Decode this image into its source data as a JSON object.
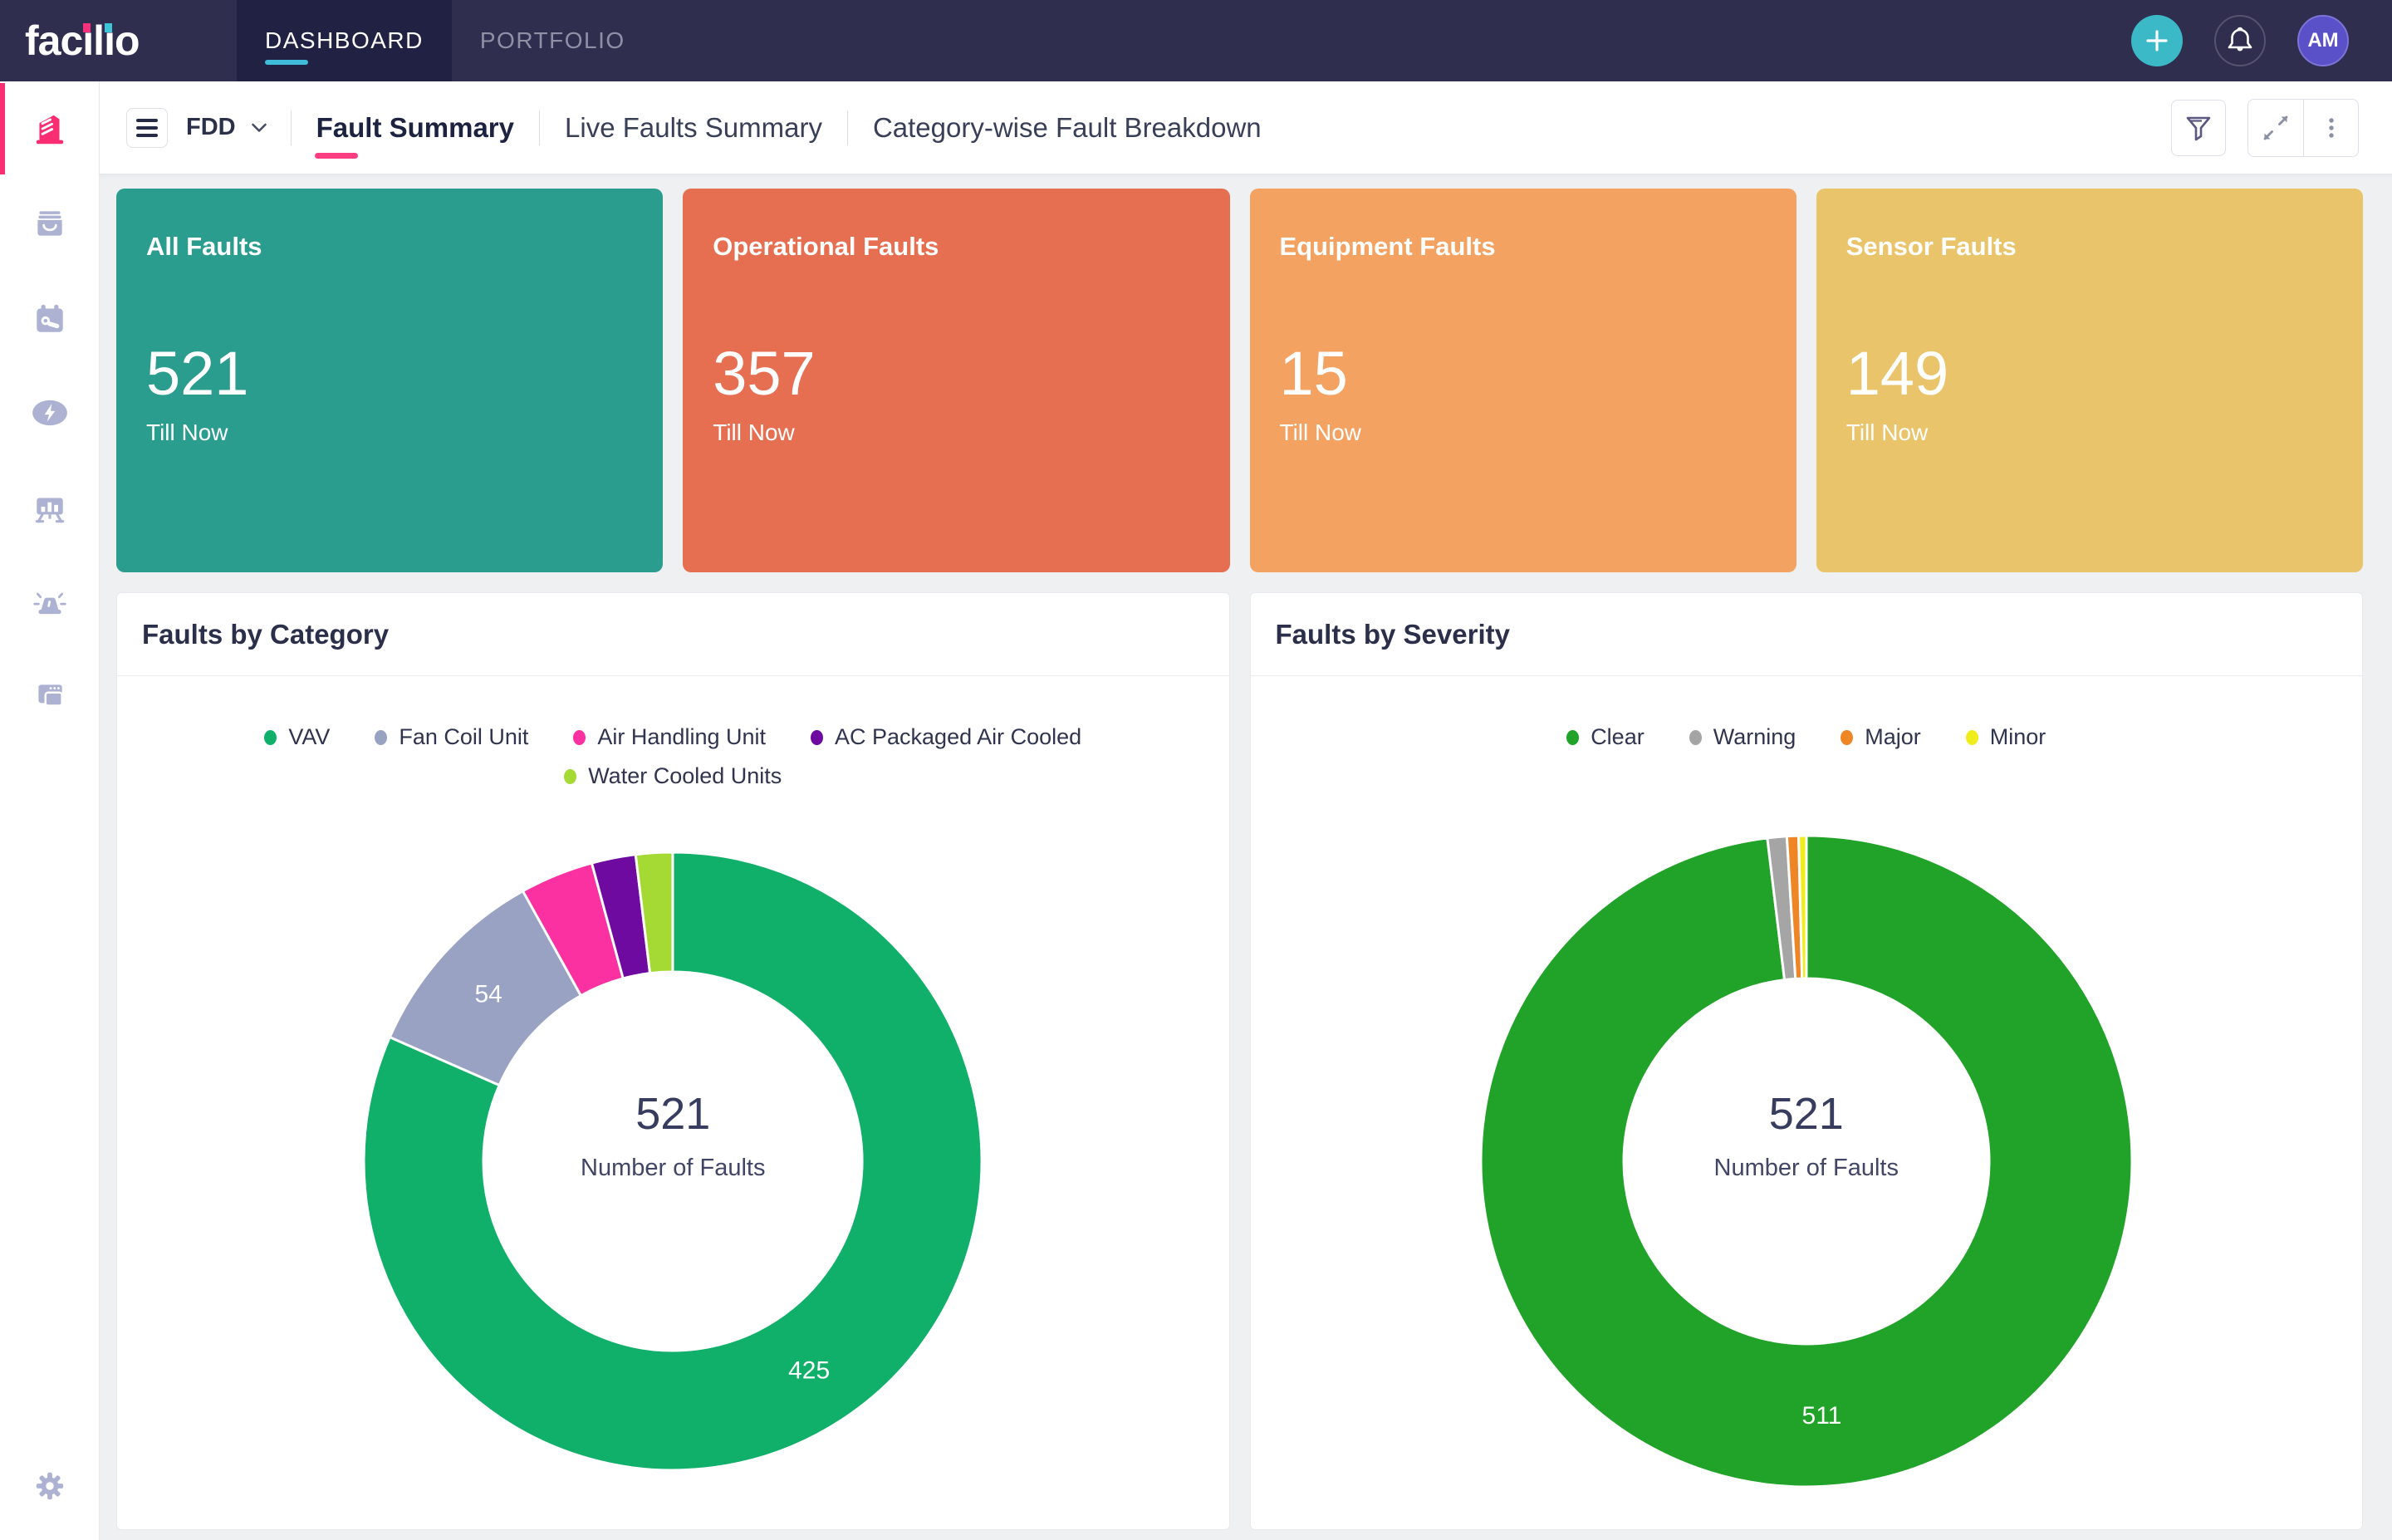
{
  "navbar": {
    "logo_parts": {
      "p1": "fac",
      "i1": "ı",
      "p2": "l",
      "i2": "ı",
      "p3": "o"
    },
    "tabs": [
      {
        "label": "DASHBOARD",
        "active": true
      },
      {
        "label": "PORTFOLIO",
        "active": false
      }
    ],
    "avatar": "AM",
    "accent_teal": "#3fbcd9",
    "accent_pink": "#f92d72"
  },
  "sidebar": {
    "items": [
      {
        "name": "facility",
        "active": true
      },
      {
        "name": "inbox",
        "active": false
      },
      {
        "name": "maintenance",
        "active": false
      },
      {
        "name": "energy",
        "active": false
      },
      {
        "name": "dashboards",
        "active": false
      },
      {
        "name": "alarms",
        "active": false
      },
      {
        "name": "apps",
        "active": false
      }
    ],
    "bottom_item": {
      "name": "settings"
    }
  },
  "toolbar": {
    "module": "FDD",
    "tabs": [
      "Fault Summary",
      "Live Faults Summary",
      "Category-wise Fault Breakdown"
    ],
    "active_tab": "Fault Summary"
  },
  "cards": [
    {
      "title": "All Faults",
      "value": "521",
      "sub": "Till Now",
      "color": "#2a9d8f"
    },
    {
      "title": "Operational Faults",
      "value": "357",
      "sub": "Till Now",
      "color": "#e76f51"
    },
    {
      "title": "Equipment Faults",
      "value": "15",
      "sub": "Till Now",
      "color": "#f4a261"
    },
    {
      "title": "Sensor Faults",
      "value": "149",
      "sub": "Till Now",
      "color": "#e9c46a"
    }
  ],
  "chart_data": [
    {
      "type": "pie",
      "title": "Faults by Category",
      "center_value": "521",
      "center_label": "Number of Faults",
      "total": 521,
      "start_angle_deg": 0,
      "clockwise": true,
      "legend_position": "top",
      "slices": [
        {
          "name": "VAV",
          "value": 425,
          "color": "#11b06a",
          "label": "425"
        },
        {
          "name": "Fan Coil Unit",
          "value": 54,
          "color": "#99a2c2",
          "label": "54"
        },
        {
          "name": "Air Handling Unit",
          "value": 20,
          "color": "#fb30a1",
          "label": ""
        },
        {
          "name": "AC Packaged Air Cooled",
          "value": 12,
          "color": "#6f0aa0",
          "label": ""
        },
        {
          "name": "Water Cooled Units",
          "value": 10,
          "color": "#a5da35",
          "label": ""
        }
      ],
      "outer_radius": 372,
      "inner_radius": 228
    },
    {
      "type": "pie",
      "title": "Faults by Severity",
      "center_value": "521",
      "center_label": "Number of Faults",
      "total": 521,
      "start_angle_deg": 0,
      "clockwise": true,
      "legend_position": "top",
      "slices": [
        {
          "name": "Clear",
          "value": 511,
          "color": "#20a328",
          "label": "511"
        },
        {
          "name": "Warning",
          "value": 5,
          "color": "#a5a5a5",
          "label": ""
        },
        {
          "name": "Major",
          "value": 3,
          "color": "#ee8625",
          "label": ""
        },
        {
          "name": "Minor",
          "value": 2,
          "color": "#f1ed1c",
          "label": ""
        }
      ],
      "outer_radius": 392,
      "inner_radius": 220
    }
  ]
}
